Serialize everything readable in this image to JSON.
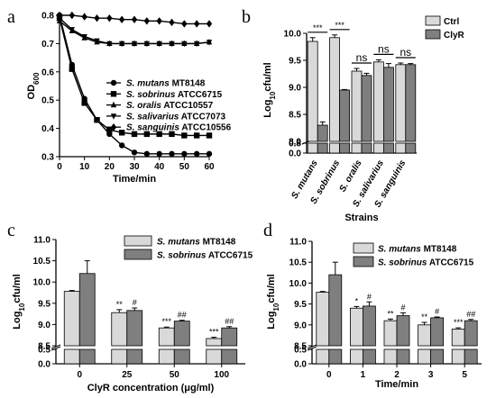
{
  "panels": {
    "a": {
      "letter": "a"
    },
    "b": {
      "letter": "b"
    },
    "c": {
      "letter": "c"
    },
    "d": {
      "letter": "d"
    }
  },
  "colors": {
    "ctrl": "#d9d9d9",
    "treated": "#7f7f7f",
    "line": "#000000"
  },
  "chart_data": [
    {
      "panel": "a",
      "type": "line",
      "xlabel": "Time/min",
      "ylabel": "OD600",
      "xlim": [
        0,
        60
      ],
      "ylim": [
        0.3,
        0.8
      ],
      "xticks": [
        "0",
        "10",
        "20",
        "30",
        "40",
        "50",
        "60"
      ],
      "yticks": [
        "0.3",
        "0.4",
        "0.5",
        "0.6",
        "0.7",
        "0.8"
      ],
      "x": [
        0,
        5,
        10,
        15,
        20,
        25,
        30,
        35,
        40,
        45,
        50,
        55,
        60
      ],
      "legend_position": "bottom-right",
      "series": [
        {
          "name": "S. mutans",
          "strain": "MT8148",
          "marker": "circle",
          "values": [
            0.8,
            0.625,
            0.505,
            0.43,
            0.38,
            0.34,
            0.315,
            0.31,
            0.31,
            0.31,
            0.31,
            0.31,
            0.31
          ]
        },
        {
          "name": "S. sobrinus",
          "strain": "ATCC6715",
          "marker": "square",
          "values": [
            0.79,
            0.61,
            0.49,
            0.43,
            0.395,
            0.385,
            0.38,
            0.38,
            0.38,
            0.38,
            0.375,
            0.375,
            0.375
          ]
        },
        {
          "name": "S. oralis",
          "strain": "ATCC10557",
          "marker": "triangle-up",
          "values": [
            0.78,
            0.745,
            0.72,
            0.705,
            0.7,
            0.7,
            0.7,
            0.7,
            0.7,
            0.7,
            0.7,
            0.7,
            0.705
          ]
        },
        {
          "name": "S. salivarius",
          "strain": "ATCC7073",
          "marker": "triangle-down",
          "values": [
            0.79,
            0.75,
            0.725,
            0.71,
            0.7,
            0.7,
            0.7,
            0.7,
            0.7,
            0.7,
            0.7,
            0.7,
            0.705
          ]
        },
        {
          "name": "S. sanguinis",
          "strain": "ATCC10556",
          "marker": "diamond",
          "values": [
            0.8,
            0.8,
            0.795,
            0.79,
            0.79,
            0.785,
            0.785,
            0.78,
            0.78,
            0.775,
            0.77,
            0.77,
            0.77
          ]
        }
      ]
    },
    {
      "panel": "b",
      "type": "bar",
      "xlabel": "Strains",
      "ylabel": "Log10cfu/ml",
      "ylim_lower": [
        0.0,
        0.8
      ],
      "ylim_upper": [
        8.0,
        10.0
      ],
      "yticks": [
        "0.0",
        "0.8",
        "8.0",
        "8.5",
        "9.0",
        "9.5",
        "10.0"
      ],
      "categories": [
        "S. mutans",
        "S. sobrinus",
        "S. oralis",
        "S. salivarius",
        "S. sanguinis"
      ],
      "legend_position": "top-right",
      "series": [
        {
          "name": "Ctrl",
          "values": [
            9.85,
            9.92,
            9.3,
            9.47,
            9.42
          ],
          "errors": [
            0.07,
            0.05,
            0.05,
            0.04,
            0.03
          ]
        },
        {
          "name": "ClyR",
          "values": [
            8.3,
            8.95,
            9.22,
            9.37,
            9.42
          ],
          "errors": [
            0.06,
            0.01,
            0.04,
            0.07,
            0.02
          ]
        }
      ],
      "annotations": [
        "***",
        "***",
        "ns",
        "ns",
        "ns"
      ]
    },
    {
      "panel": "c",
      "type": "bar",
      "xlabel": "ClyR concentration (μg/ml)",
      "ylabel": "Log10cfu/ml",
      "ylim_lower": [
        0.0,
        0.5
      ],
      "ylim_upper": [
        8.5,
        11.0
      ],
      "yticks": [
        "0.0",
        "0.5",
        "8.5",
        "9.0",
        "9.5",
        "10.0",
        "10.5",
        "11.0"
      ],
      "categories": [
        "0",
        "25",
        "50",
        "100"
      ],
      "legend_position": "top-right",
      "series": [
        {
          "name": "S. mutans",
          "strain": "MT8148",
          "values": [
            9.78,
            9.28,
            8.92,
            8.67
          ],
          "errors": [
            0.02,
            0.07,
            0.02,
            0.03
          ],
          "annotations": [
            "",
            "**",
            "***",
            "***"
          ]
        },
        {
          "name": "S. sobrinus",
          "strain": "ATCC6715",
          "values": [
            10.2,
            9.33,
            9.08,
            8.92
          ],
          "errors": [
            0.3,
            0.06,
            0.02,
            0.03
          ],
          "annotations": [
            "",
            "#",
            "##",
            "##"
          ]
        }
      ]
    },
    {
      "panel": "d",
      "type": "bar",
      "xlabel": "Time/min",
      "ylabel": "Log10cfu/ml",
      "ylim_lower": [
        0.0,
        0.5
      ],
      "ylim_upper": [
        8.5,
        11.0
      ],
      "yticks": [
        "0.0",
        "0.5",
        "8.5",
        "9.0",
        "9.5",
        "10.0",
        "10.5",
        "11.0"
      ],
      "categories": [
        "0",
        "1",
        "2",
        "3",
        "5"
      ],
      "legend_position": "top-right",
      "series": [
        {
          "name": "S. mutans",
          "strain": "MT8148",
          "values": [
            9.78,
            9.4,
            9.1,
            9.0,
            8.9
          ],
          "errors": [
            0.02,
            0.04,
            0.04,
            0.06,
            0.03
          ],
          "annotations": [
            "",
            "*",
            "**",
            "**",
            "***"
          ]
        },
        {
          "name": "S. sobrinus",
          "strain": "ATCC6715",
          "values": [
            10.2,
            9.45,
            9.22,
            9.17,
            9.1
          ],
          "errors": [
            0.3,
            0.1,
            0.07,
            0.02,
            0.03
          ],
          "annotations": [
            "",
            "#",
            "#",
            "#",
            "##"
          ]
        }
      ]
    }
  ]
}
